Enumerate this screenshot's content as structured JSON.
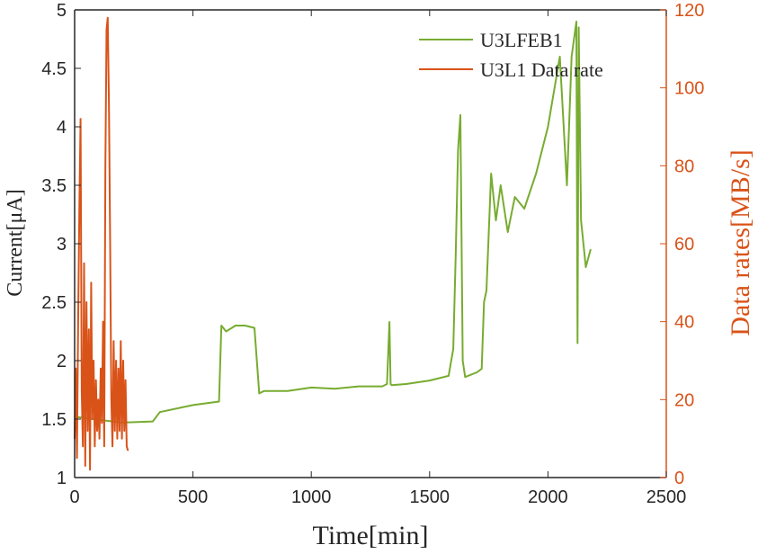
{
  "chart_data": {
    "type": "line",
    "xlabel": "Time[min]",
    "ylabel_left": "Current[μA]",
    "ylabel_right": "Data rates[MB/s]",
    "xlim": [
      0,
      2500
    ],
    "ylim_left": [
      1,
      5
    ],
    "ylim_right": [
      0,
      120
    ],
    "xticks": [
      "0",
      "500",
      "1000",
      "1500",
      "2000",
      "2500"
    ],
    "yticks_left": [
      "1",
      "1.5",
      "2",
      "2.5",
      "3",
      "3.5",
      "4",
      "4.5",
      "5"
    ],
    "yticks_right": [
      "0",
      "20",
      "40",
      "60",
      "80",
      "100",
      "120"
    ],
    "grid": false,
    "legend_position": "top-right",
    "colors": {
      "current": "#77ac30",
      "rate": "#d95319",
      "axis": "#262626"
    },
    "series": [
      {
        "name": "U3LFEB1",
        "axis": "left",
        "x": [
          0,
          200,
          330,
          360,
          500,
          610,
          620,
          640,
          680,
          720,
          760,
          780,
          800,
          900,
          1000,
          1100,
          1200,
          1300,
          1320,
          1330,
          1335,
          1340,
          1400,
          1500,
          1580,
          1600,
          1610,
          1620,
          1630,
          1640,
          1650,
          1700,
          1720,
          1730,
          1740,
          1760,
          1780,
          1800,
          1830,
          1860,
          1900,
          1950,
          2000,
          2050,
          2080,
          2100,
          2120,
          2125,
          2130,
          2140,
          2160,
          2180
        ],
        "values": [
          1.52,
          1.47,
          1.48,
          1.56,
          1.62,
          1.65,
          2.3,
          2.25,
          2.3,
          2.3,
          2.28,
          1.72,
          1.74,
          1.74,
          1.77,
          1.76,
          1.78,
          1.78,
          1.8,
          2.33,
          1.8,
          1.79,
          1.8,
          1.83,
          1.87,
          2.1,
          2.9,
          3.8,
          4.1,
          2.0,
          1.86,
          1.9,
          1.93,
          2.5,
          2.6,
          3.6,
          3.2,
          3.5,
          3.1,
          3.4,
          3.3,
          3.6,
          4.0,
          4.6,
          3.5,
          4.6,
          4.9,
          2.15,
          4.85,
          3.2,
          2.8,
          2.95
        ]
      },
      {
        "name": "U3L1 Data rate",
        "axis": "right",
        "x": [
          0,
          5,
          10,
          15,
          20,
          25,
          30,
          35,
          40,
          45,
          50,
          55,
          60,
          65,
          70,
          75,
          80,
          85,
          90,
          95,
          100,
          105,
          110,
          115,
          120,
          125,
          130,
          135,
          140,
          145,
          150,
          155,
          160,
          165,
          170,
          175,
          180,
          185,
          190,
          195,
          200,
          205,
          210,
          215,
          220,
          225
        ],
        "values": [
          10,
          28,
          5,
          40,
          70,
          92,
          22,
          8,
          55,
          3,
          45,
          12,
          38,
          2,
          50,
          15,
          30,
          8,
          25,
          12,
          20,
          10,
          28,
          14,
          40,
          8,
          80,
          115,
          118,
          95,
          60,
          20,
          8,
          35,
          12,
          30,
          10,
          28,
          12,
          35,
          10,
          30,
          12,
          25,
          8,
          7
        ]
      }
    ]
  }
}
